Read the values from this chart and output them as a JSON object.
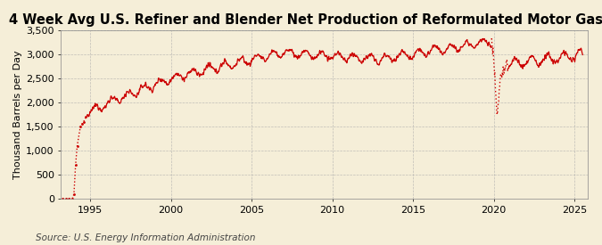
{
  "title": "4 Week Avg U.S. Refiner and Blender Net Production of Reformulated Motor Gasoline",
  "ylabel": "Thousand Barrels per Day",
  "source": "Source: U.S. Energy Information Administration",
  "ylim": [
    0,
    3500
  ],
  "yticks": [
    0,
    500,
    1000,
    1500,
    2000,
    2500,
    3000,
    3500
  ],
  "xlim_start": 1993.2,
  "xlim_end": 2025.8,
  "xticks": [
    1995,
    2000,
    2005,
    2010,
    2015,
    2020,
    2025
  ],
  "line_color": "#cc0000",
  "background_color": "#f5eed8",
  "grid_color": "#aaaaaa",
  "title_fontsize": 10.5,
  "label_fontsize": 8,
  "tick_fontsize": 8,
  "source_fontsize": 7.5
}
